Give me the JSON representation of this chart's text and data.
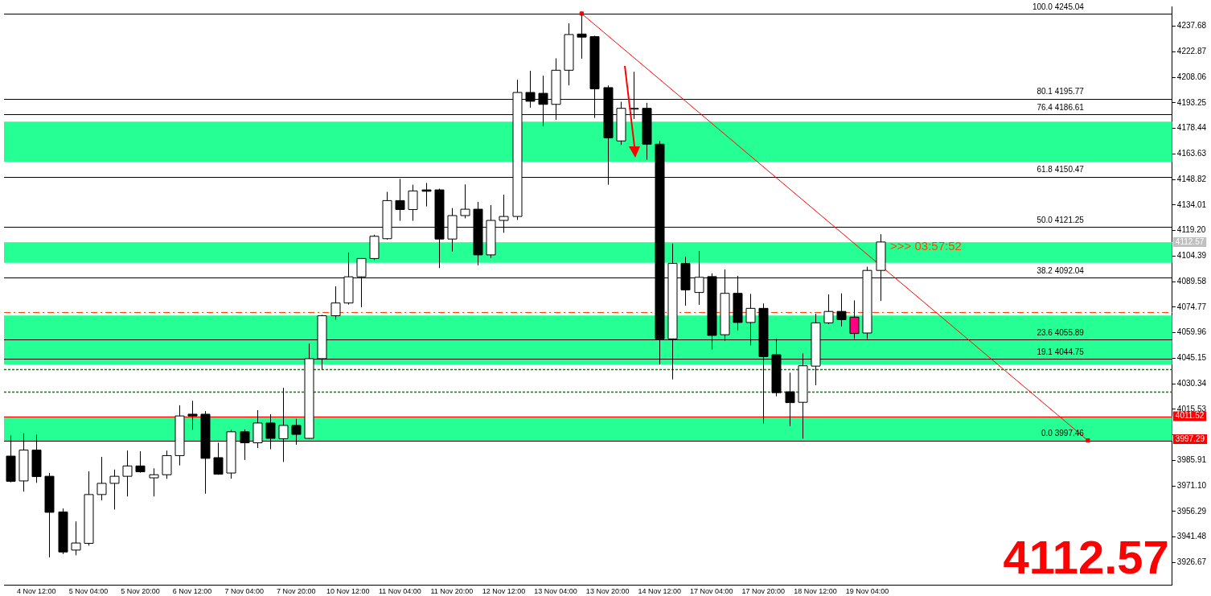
{
  "chart_data": {
    "type": "candlestick",
    "categories": [
      null,
      null,
      "4 Nov 12:00",
      null,
      null,
      null,
      "5 Nov 04:00",
      null,
      null,
      null,
      "5 Nov 20:00",
      null,
      null,
      null,
      "6 Nov 12:00",
      null,
      null,
      null,
      "7 Nov 04:00",
      null,
      null,
      null,
      "7 Nov 20:00",
      null,
      null,
      null,
      "10 Nov 12:00",
      null,
      null,
      null,
      "11 Nov 04:00",
      null,
      null,
      null,
      "11 Nov 20:00",
      null,
      null,
      null,
      "12 Nov 12:00",
      null,
      null,
      null,
      "13 Nov 04:00",
      null,
      null,
      null,
      "13 Nov 20:00",
      null,
      null,
      null,
      "14 Nov 12:00",
      null,
      null,
      null,
      "17 Nov 04:00",
      null,
      null,
      null,
      "17 Nov 20:00",
      null,
      null,
      null,
      "18 Nov 12:00",
      null,
      null,
      null,
      "19 Nov 04:00",
      null,
      null,
      null,
      null,
      null,
      null,
      null,
      null,
      null,
      null,
      null,
      null,
      null,
      null,
      null,
      null,
      null,
      null,
      null,
      null,
      null,
      null,
      null
    ],
    "ohlc": [
      [
        3988.4,
        4000.4,
        3973.2,
        3973.8
      ],
      [
        3974.0,
        4001.6,
        3967.8,
        3991.9
      ],
      [
        3991.9,
        4000.8,
        3972.9,
        3976.5
      ],
      [
        3976.7,
        3978.6,
        3929.7,
        3955.8
      ],
      [
        3956.0,
        3958.0,
        3931.6,
        3932.8
      ],
      [
        3933.9,
        3950.5,
        3930.9,
        3938.0
      ],
      [
        3937.8,
        3979.6,
        3936.5,
        3966.1
      ],
      [
        3966.1,
        3987.9,
        3962.7,
        3972.6
      ],
      [
        3972.6,
        3980.6,
        3957.4,
        3976.7
      ],
      [
        3976.7,
        3991.6,
        3965.0,
        3982.7
      ],
      [
        3982.7,
        3991.2,
        3978.8,
        3979.3
      ],
      [
        3975.8,
        3981.3,
        3965.0,
        3977.6
      ],
      [
        3977.6,
        3991.6,
        3975.2,
        3988.7
      ],
      [
        3988.7,
        4017.9,
        3983.0,
        4011.7
      ],
      [
        4012.7,
        4020.5,
        4003.7,
        4011.7
      ],
      [
        4012.7,
        4014.5,
        3966.6,
        3987.1
      ],
      [
        3987.5,
        3996.2,
        3977.6,
        3977.9
      ],
      [
        3978.6,
        4003.6,
        3975.3,
        4002.5
      ],
      [
        4002.5,
        4003.9,
        3986.2,
        3996.1
      ],
      [
        3996.1,
        4015.0,
        3993.1,
        4007.6
      ],
      [
        4007.6,
        4012.7,
        3992.4,
        3998.7
      ],
      [
        3998.5,
        4028.0,
        3985.0,
        4006.2
      ],
      [
        4006.2,
        4010.0,
        3995.0,
        4001.0
      ],
      [
        3998.7,
        4053.7,
        3998.5,
        4044.9
      ],
      [
        4044.9,
        4070.3,
        4038.5,
        4069.8
      ],
      [
        4069.8,
        4086.9,
        4067.5,
        4077.2
      ],
      [
        4077.2,
        4106.4,
        4076.3,
        4092.4
      ],
      [
        4092.4,
        4103.0,
        4074.7,
        4103.0
      ],
      [
        4103.0,
        4116.8,
        4102.1,
        4115.9
      ],
      [
        4114.5,
        4141.7,
        4113.9,
        4136.6
      ],
      [
        4136.6,
        4149.2,
        4124.9,
        4131.4
      ],
      [
        4131.4,
        4145.8,
        4124.9,
        4142.2
      ],
      [
        4142.0,
        4146.8,
        4133.2,
        4142.8
      ],
      [
        4142.8,
        4143.5,
        4097.5,
        4114.3
      ],
      [
        4114.3,
        4132.2,
        4107.1,
        4127.9
      ],
      [
        4127.9,
        4146.0,
        4126.3,
        4131.6
      ],
      [
        4131.6,
        4135.8,
        4099.1,
        4105.1
      ],
      [
        4105.1,
        4134.0,
        4103.3,
        4125.1
      ],
      [
        4125.1,
        4140.0,
        4117.9,
        4127.4
      ],
      [
        4127.4,
        4206.7,
        4125.4,
        4199.3
      ],
      [
        4199.3,
        4211.9,
        4190.5,
        4194.2
      ],
      [
        4198.8,
        4209.0,
        4179.8,
        4192.4
      ],
      [
        4192.4,
        4219.1,
        4183.4,
        4212.2
      ],
      [
        4212.2,
        4239.4,
        4203.4,
        4232.9
      ],
      [
        4233.2,
        4245.0,
        4218.9,
        4231.4
      ],
      [
        4231.7,
        4232.2,
        4184.5,
        4201.4
      ],
      [
        4202.1,
        4203.4,
        4145.8,
        4173.0
      ],
      [
        4171.2,
        4193.9,
        4168.9,
        4190.1
      ],
      [
        4190.1,
        4211.3,
        4183.9,
        4190.1
      ],
      [
        4190.1,
        4193.3,
        4160.3,
        4169.3
      ],
      [
        4169.3,
        4171.2,
        4041.5,
        4056.4
      ],
      [
        4056.4,
        4111.7,
        4032.9,
        4100.2
      ],
      [
        4100.2,
        4104.0,
        4075.6,
        4084.8
      ],
      [
        4083.3,
        4107.4,
        4076.1,
        4092.1
      ],
      [
        4092.5,
        4094.4,
        4050.3,
        4058.4
      ],
      [
        4058.8,
        4096.7,
        4055.3,
        4082.8
      ],
      [
        4082.8,
        4092.9,
        4061.3,
        4065.9
      ],
      [
        4065.9,
        4082.5,
        4052.6,
        4074.1
      ],
      [
        4074.1,
        4076.9,
        4007.3,
        4046.1
      ],
      [
        4047.2,
        4056.4,
        4023.1,
        4025.2
      ],
      [
        4025.7,
        4036.8,
        4005.8,
        4019.4
      ],
      [
        4019.6,
        4048.0,
        3998.5,
        4040.8
      ],
      [
        4040.6,
        4071.0,
        4029.5,
        4065.7
      ],
      [
        4065.7,
        4082.2,
        4064.9,
        4072.3
      ],
      [
        4072.3,
        4082.8,
        4063.6,
        4067.5
      ],
      [
        4069.0,
        4078.7,
        4056.4,
        4059.5
      ],
      [
        4059.8,
        4098.2,
        4056.4,
        4096.1
      ],
      [
        4096.1,
        4117.1,
        4078.4,
        4112.57
      ],
      null,
      null,
      null,
      null,
      null,
      null,
      null,
      null,
      null,
      null,
      null,
      null,
      null,
      null,
      null,
      null,
      null,
      null,
      null,
      null,
      null,
      null
    ],
    "colors": [
      "#000000",
      "#ffffff",
      "#000000",
      "#000000",
      "#000000",
      "#ffffff",
      "#ffffff",
      "#ffffff",
      "#ffffff",
      "#ffffff",
      "#000000",
      "#ffffff",
      "#ffffff",
      "#ffffff",
      "#000000",
      "#000000",
      "#000000",
      "#ffffff",
      "#000000",
      "#ffffff",
      "#000000",
      "#ffffff",
      "#000000",
      "#ffffff",
      "#ffffff",
      "#ffffff",
      "#ffffff",
      "#ffffff",
      "#ffffff",
      "#ffffff",
      "#000000",
      "#ffffff",
      "#000000",
      "#000000",
      "#ffffff",
      "#ffffff",
      "#000000",
      "#ffffff",
      "#ffffff",
      "#ffffff",
      "#000000",
      "#000000",
      "#ffffff",
      "#ffffff",
      "#000000",
      "#000000",
      "#000000",
      "#ffffff",
      "#ffffff",
      "#000000",
      "#000000",
      "#ffffff",
      "#000000",
      "#ffffff",
      "#000000",
      "#ffffff",
      "#000000",
      "#ffffff",
      "#000000",
      "#000000",
      "#000000",
      "#ffffff",
      "#ffffff",
      "#ffffff",
      "#000000",
      "#ff0080",
      "#ffffff",
      "#ffffff",
      null,
      null,
      null,
      null,
      null,
      null,
      null,
      null,
      null,
      null,
      null,
      null,
      null,
      null,
      null,
      null,
      null,
      null,
      null,
      null,
      null,
      null
    ],
    "series": [
      {
        "type": "line",
        "color": "#ff0000",
        "values": [
          null,
          null,
          null,
          null,
          null,
          null,
          null,
          null,
          null,
          null,
          null,
          null,
          null,
          null,
          null,
          null,
          null,
          null,
          null,
          null,
          null,
          null,
          null,
          null,
          null,
          null,
          null,
          null,
          null,
          null,
          null,
          null,
          null,
          null,
          null,
          null,
          null,
          null,
          null,
          null,
          null,
          null,
          null,
          null,
          4245.04,
          null,
          null,
          null,
          null,
          null,
          null,
          null,
          null,
          null,
          null,
          null,
          null,
          null,
          null,
          null,
          null,
          null,
          null,
          null,
          null,
          null,
          null,
          null,
          null,
          null,
          null,
          null,
          null,
          null,
          null,
          null,
          null,
          null,
          null,
          null,
          null,
          null,
          null,
          3997.46,
          null,
          null,
          null,
          null,
          null,
          null
        ]
      }
    ],
    "marker": "square",
    "ylim": [
      3913.7,
      4249.2
    ],
    "yticks": [
      4237.68,
      4222.87,
      4208.06,
      4193.25,
      4178.44,
      4163.63,
      4148.82,
      4134.01,
      {
        "value": 4119.2,
        "label": "4119.20"
      },
      4104.39,
      4089.58,
      4074.77,
      4059.96,
      4045.15,
      4030.34,
      4015.53,
      {
        "value": 4000.72,
        "label": null
      },
      3985.91,
      {
        "value": 3971.1,
        "label": "3971.10"
      },
      3956.29,
      3941.48,
      3926.67
    ],
    "ref_lines": [
      {
        "axis": "y",
        "value": 4245.04,
        "label": "100.0 4245.04"
      },
      {
        "axis": "y",
        "value": 4195.77,
        "label": "80.1 4195.77"
      },
      {
        "axis": "y",
        "value": 4186.61,
        "label": "76.4 4186.61"
      },
      {
        "axis": "y",
        "value": 4150.47,
        "label": "61.8 4150.47"
      },
      {
        "axis": "y",
        "value": 4121.25,
        "label": "50.0 4121.25"
      },
      {
        "axis": "y",
        "value": 4092.04,
        "label": "38.2 4092.04"
      },
      {
        "axis": "y",
        "value": 4055.89,
        "label": "23.6 4055.89"
      },
      {
        "axis": "y",
        "value": 4044.75,
        "label": "19.1 4044.75"
      },
      {
        "axis": "y",
        "value": 3997.46,
        "label": "0.0 3997.46"
      },
      {
        "axis": "y",
        "value": 4112.57,
        "label": "4112.57",
        "color": "#c0c0c0"
      },
      {
        "axis": "y",
        "value": 4011.52,
        "label": "4011.52",
        "color": "#ff0000"
      },
      {
        "axis": "y",
        "value": 4071.8,
        "color": "#ff4500",
        "line_style": "dashed"
      },
      {
        "axis": "y",
        "value": 4038.6,
        "color": "#008000",
        "line_style": "dotted"
      },
      {
        "axis": "y",
        "value": 4025.7,
        "color": "#008000",
        "line_style": "dotted"
      }
    ],
    "bands": [
      {
        "axis": "y",
        "from": 4159.0,
        "to": 4182.4,
        "color": "#00ff80"
      },
      {
        "axis": "y",
        "from": 4100.5,
        "to": 4112.0,
        "color": "#00ff80"
      },
      {
        "axis": "y",
        "from": 4041.5,
        "to": 4069.9,
        "color": "#00ff80"
      },
      {
        "axis": "y",
        "from": 3997.29,
        "to": 4011.52,
        "color": "#00ff80"
      }
    ],
    "annotations": [
      "4112.57",
      ">>> 03:57:52",
      "3997.29"
    ],
    "grid": false,
    "legend": false
  }
}
